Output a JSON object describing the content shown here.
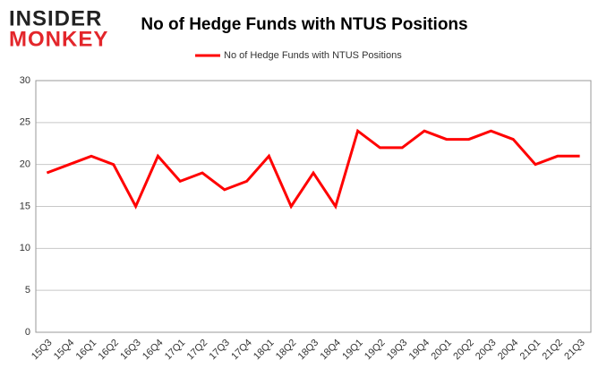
{
  "logo": {
    "line1": "INSIDER",
    "line2": "MONKEY"
  },
  "chart_data": {
    "type": "line",
    "title": "No of Hedge Funds with NTUS Positions",
    "categories": [
      "15Q3",
      "15Q4",
      "16Q1",
      "16Q2",
      "16Q3",
      "16Q4",
      "17Q1",
      "17Q2",
      "17Q3",
      "17Q4",
      "18Q1",
      "18Q2",
      "18Q3",
      "18Q4",
      "19Q1",
      "19Q2",
      "19Q3",
      "19Q4",
      "20Q1",
      "20Q2",
      "20Q3",
      "20Q4",
      "21Q1",
      "21Q2",
      "21Q3"
    ],
    "series": [
      {
        "name": "No of Hedge Funds with NTUS Positions",
        "color": "#ff0000",
        "values": [
          19,
          20,
          21,
          20,
          15,
          21,
          18,
          19,
          17,
          18,
          21,
          15,
          19,
          15,
          24,
          22,
          22,
          24,
          23,
          23,
          24,
          23,
          20,
          21,
          21
        ]
      }
    ],
    "ylim": [
      0,
      30
    ],
    "yticks": [
      0,
      5,
      10,
      15,
      20,
      25,
      30
    ],
    "grid": true,
    "legend": "top"
  }
}
